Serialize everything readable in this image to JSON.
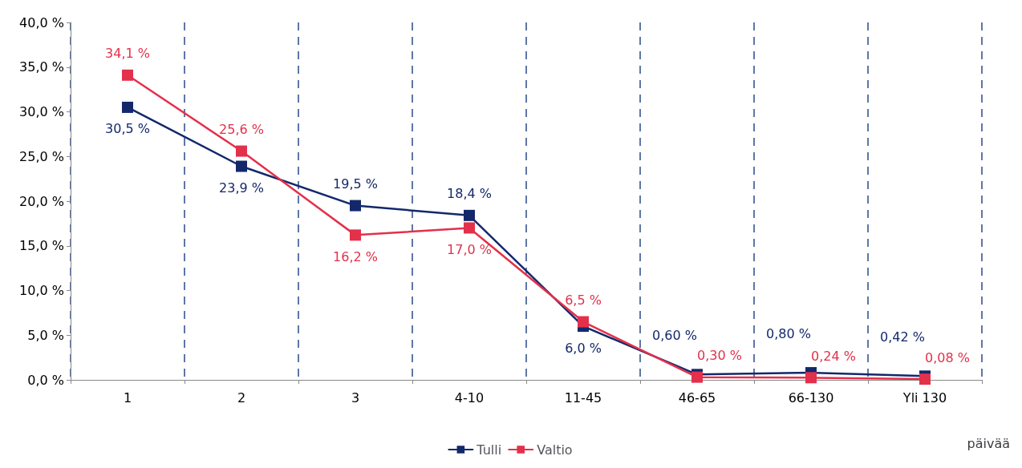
{
  "chart_data": {
    "type": "line",
    "xlabel": "päivää",
    "categories": [
      "1",
      "2",
      "3",
      "4-10",
      "11-45",
      "46-65",
      "66-130",
      "Yli 130"
    ],
    "series": [
      {
        "name": "Tulli",
        "color": "#13286b",
        "values": [
          30.5,
          23.9,
          19.5,
          18.4,
          6.0,
          0.6,
          0.8,
          0.42
        ],
        "value_labels": [
          "30,5 %",
          "23,9 %",
          "19,5 %",
          "18,4 %",
          "6,0 %",
          "0,60 %",
          "0,80 %",
          "0,42 %"
        ]
      },
      {
        "name": "Valtio",
        "color": "#e3304b",
        "values": [
          34.1,
          25.6,
          16.2,
          17.0,
          6.5,
          0.3,
          0.24,
          0.08
        ],
        "value_labels": [
          "34,1 %",
          "25,6 %",
          "16,2 %",
          "17,0 %",
          "6,5 %",
          "0,30 %",
          "0,24 %",
          "0,08 %"
        ]
      }
    ],
    "ylim": [
      0,
      40
    ],
    "yticks": [
      {
        "value": 0,
        "label": "0,0 %"
      },
      {
        "value": 5,
        "label": "5,0 %"
      },
      {
        "value": 10,
        "label": "10,0 %"
      },
      {
        "value": 15,
        "label": "15,0 %"
      },
      {
        "value": 20,
        "label": "20,0 %"
      },
      {
        "value": 25,
        "label": "25,0 %"
      },
      {
        "value": 30,
        "label": "30,0 %"
      },
      {
        "value": 35,
        "label": "35,0 %"
      },
      {
        "value": 40,
        "label": "40,0 %"
      }
    ],
    "grid": "x",
    "legend": "bottom",
    "marker": "square",
    "line_style": "solid"
  }
}
